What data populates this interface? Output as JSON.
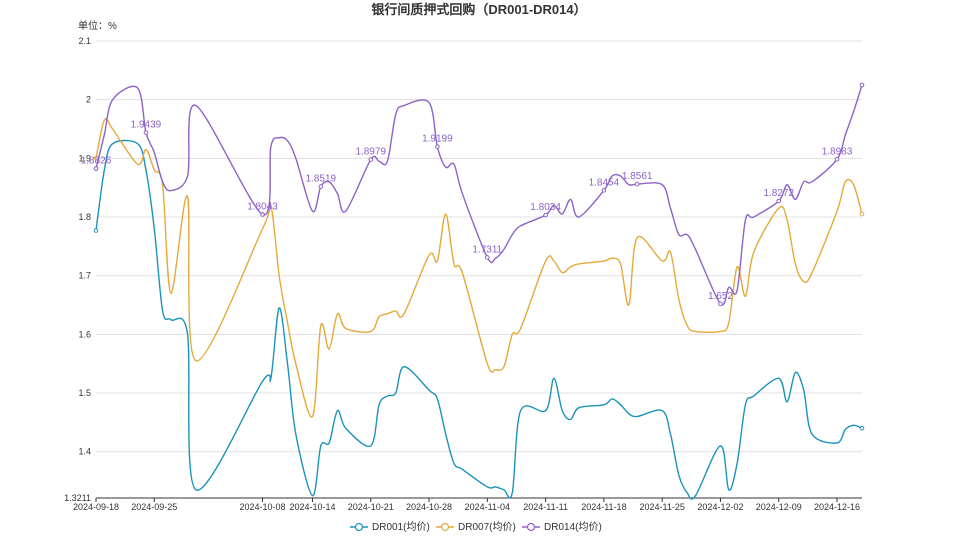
{
  "chart_data": {
    "type": "line",
    "title": "银行间质押式回购（DR001-DR014）",
    "unit_label": "单位：%",
    "ylim": [
      1.3211,
      2.1
    ],
    "y_ticks": [
      "1.3211",
      "1.4",
      "1.5",
      "1.6",
      "1.7",
      "1.8",
      "1.9",
      "2",
      "2.1"
    ],
    "x_range": [
      "2024-09-18",
      "2024-12-19"
    ],
    "x_tick_labels": [
      "2024-09-18",
      "2024-09-25",
      "2024-10-08",
      "2024-10-14",
      "2024-10-21",
      "2024-10-28",
      "2024-11-04",
      "2024-11-11",
      "2024-11-18",
      "2024-11-25",
      "2024-12-02",
      "2024-12-09",
      "2024-12-16"
    ],
    "grid": true,
    "legend_position": "bottom",
    "series": [
      {
        "name": "DR001(均价)",
        "color": "#1a93bb",
        "points": [
          [
            "2024-09-18",
            1.777
          ],
          [
            "2024-09-19",
            1.88
          ],
          [
            "2024-09-20",
            1.925
          ],
          [
            "2024-09-23",
            1.925
          ],
          [
            "2024-09-24",
            1.88
          ],
          [
            "2024-09-25",
            1.78
          ],
          [
            "2024-09-26",
            1.64
          ],
          [
            "2024-09-27",
            1.625
          ],
          [
            "2024-09-29",
            1.6
          ],
          [
            "2024-09-30",
            1.335
          ],
          [
            "2024-10-08",
            1.52
          ],
          [
            "2024-10-09",
            1.525
          ],
          [
            "2024-10-10",
            1.645
          ],
          [
            "2024-10-11",
            1.55
          ],
          [
            "2024-10-12",
            1.43
          ],
          [
            "2024-10-14",
            1.325
          ],
          [
            "2024-10-15",
            1.41
          ],
          [
            "2024-10-16",
            1.415
          ],
          [
            "2024-10-17",
            1.47
          ],
          [
            "2024-10-18",
            1.44
          ],
          [
            "2024-10-21",
            1.41
          ],
          [
            "2024-10-22",
            1.48
          ],
          [
            "2024-10-23",
            1.495
          ],
          [
            "2024-10-24",
            1.5
          ],
          [
            "2024-10-25",
            1.545
          ],
          [
            "2024-10-28",
            1.505
          ],
          [
            "2024-10-29",
            1.49
          ],
          [
            "2024-10-30",
            1.43
          ],
          [
            "2024-10-31",
            1.38
          ],
          [
            "2024-11-01",
            1.37
          ],
          [
            "2024-11-04",
            1.34
          ],
          [
            "2024-11-05",
            1.34
          ],
          [
            "2024-11-06",
            1.335
          ],
          [
            "2024-11-07",
            1.33
          ],
          [
            "2024-11-08",
            1.47
          ],
          [
            "2024-11-11",
            1.47
          ],
          [
            "2024-11-12",
            1.525
          ],
          [
            "2024-11-13",
            1.47
          ],
          [
            "2024-11-14",
            1.455
          ],
          [
            "2024-11-15",
            1.475
          ],
          [
            "2024-11-18",
            1.48
          ],
          [
            "2024-11-19",
            1.49
          ],
          [
            "2024-11-20",
            1.48
          ],
          [
            "2024-11-21",
            1.465
          ],
          [
            "2024-11-22",
            1.46
          ],
          [
            "2024-11-25",
            1.47
          ],
          [
            "2024-11-26",
            1.43
          ],
          [
            "2024-11-27",
            1.36
          ],
          [
            "2024-11-28",
            1.33
          ],
          [
            "2024-11-29",
            1.325
          ],
          [
            "2024-12-02",
            1.41
          ],
          [
            "2024-12-03",
            1.335
          ],
          [
            "2024-12-04",
            1.38
          ],
          [
            "2024-12-05",
            1.48
          ],
          [
            "2024-12-06",
            1.495
          ],
          [
            "2024-12-09",
            1.525
          ],
          [
            "2024-12-10",
            1.485
          ],
          [
            "2024-12-11",
            1.535
          ],
          [
            "2024-12-12",
            1.505
          ],
          [
            "2024-12-13",
            1.43
          ],
          [
            "2024-12-16",
            1.415
          ],
          [
            "2024-12-17",
            1.438
          ],
          [
            "2024-12-18",
            1.445
          ],
          [
            "2024-12-19",
            1.44
          ]
        ],
        "labels": []
      },
      {
        "name": "DR007(均价)",
        "color": "#e5a93a",
        "points": [
          [
            "2024-09-18",
            1.9
          ],
          [
            "2024-09-19",
            1.965
          ],
          [
            "2024-09-20",
            1.95
          ],
          [
            "2024-09-23",
            1.89
          ],
          [
            "2024-09-24",
            1.915
          ],
          [
            "2024-09-25",
            1.88
          ],
          [
            "2024-09-26",
            1.855
          ],
          [
            "2024-09-27",
            1.67
          ],
          [
            "2024-09-29",
            1.835
          ],
          [
            "2024-09-30",
            1.555
          ],
          [
            "2024-10-08",
            1.78
          ],
          [
            "2024-10-09",
            1.82
          ],
          [
            "2024-10-10",
            1.7
          ],
          [
            "2024-10-11",
            1.62
          ],
          [
            "2024-10-12",
            1.55
          ],
          [
            "2024-10-14",
            1.46
          ],
          [
            "2024-10-15",
            1.615
          ],
          [
            "2024-10-16",
            1.575
          ],
          [
            "2024-10-17",
            1.635
          ],
          [
            "2024-10-18",
            1.61
          ],
          [
            "2024-10-21",
            1.605
          ],
          [
            "2024-10-22",
            1.63
          ],
          [
            "2024-10-23",
            1.635
          ],
          [
            "2024-10-24",
            1.64
          ],
          [
            "2024-10-25",
            1.635
          ],
          [
            "2024-10-28",
            1.735
          ],
          [
            "2024-10-29",
            1.725
          ],
          [
            "2024-10-30",
            1.805
          ],
          [
            "2024-10-31",
            1.72
          ],
          [
            "2024-11-01",
            1.705
          ],
          [
            "2024-11-04",
            1.55
          ],
          [
            "2024-11-05",
            1.54
          ],
          [
            "2024-11-06",
            1.545
          ],
          [
            "2024-11-07",
            1.6
          ],
          [
            "2024-11-08",
            1.61
          ],
          [
            "2024-11-11",
            1.725
          ],
          [
            "2024-11-12",
            1.725
          ],
          [
            "2024-11-13",
            1.705
          ],
          [
            "2024-11-14",
            1.715
          ],
          [
            "2024-11-15",
            1.72
          ],
          [
            "2024-11-18",
            1.725
          ],
          [
            "2024-11-19",
            1.73
          ],
          [
            "2024-11-20",
            1.72
          ],
          [
            "2024-11-21",
            1.65
          ],
          [
            "2024-11-22",
            1.765
          ],
          [
            "2024-11-25",
            1.725
          ],
          [
            "2024-11-26",
            1.74
          ],
          [
            "2024-11-27",
            1.66
          ],
          [
            "2024-11-28",
            1.615
          ],
          [
            "2024-11-29",
            1.605
          ],
          [
            "2024-12-02",
            1.605
          ],
          [
            "2024-12-03",
            1.62
          ],
          [
            "2024-12-04",
            1.715
          ],
          [
            "2024-12-05",
            1.665
          ],
          [
            "2024-12-06",
            1.74
          ],
          [
            "2024-12-09",
            1.815
          ],
          [
            "2024-12-10",
            1.795
          ],
          [
            "2024-12-11",
            1.72
          ],
          [
            "2024-12-12",
            1.69
          ],
          [
            "2024-12-13",
            1.705
          ],
          [
            "2024-12-16",
            1.81
          ],
          [
            "2024-12-17",
            1.86
          ],
          [
            "2024-12-18",
            1.855
          ],
          [
            "2024-12-19",
            1.805
          ]
        ],
        "labels": []
      },
      {
        "name": "DR014(均价)",
        "color": "#8d62c8",
        "points": [
          [
            "2024-09-18",
            1.8826
          ],
          [
            "2024-09-19",
            1.94
          ],
          [
            "2024-09-20",
            2.0
          ],
          [
            "2024-09-23",
            2.02
          ],
          [
            "2024-09-24",
            1.9439
          ],
          [
            "2024-09-25",
            1.91
          ],
          [
            "2024-09-26",
            1.86
          ],
          [
            "2024-09-27",
            1.845
          ],
          [
            "2024-09-29",
            1.87
          ],
          [
            "2024-09-30",
            1.99
          ],
          [
            "2024-10-08",
            1.8043
          ],
          [
            "2024-10-09",
            1.92
          ],
          [
            "2024-10-10",
            1.935
          ],
          [
            "2024-10-11",
            1.93
          ],
          [
            "2024-10-12",
            1.9
          ],
          [
            "2024-10-14",
            1.81
          ],
          [
            "2024-10-15",
            1.8519
          ],
          [
            "2024-10-16",
            1.86
          ],
          [
            "2024-10-17",
            1.84
          ],
          [
            "2024-10-18",
            1.81
          ],
          [
            "2024-10-21",
            1.8979
          ],
          [
            "2024-10-22",
            1.895
          ],
          [
            "2024-10-23",
            1.895
          ],
          [
            "2024-10-24",
            1.975
          ],
          [
            "2024-10-25",
            1.99
          ],
          [
            "2024-10-28",
            1.995
          ],
          [
            "2024-10-29",
            1.9199
          ],
          [
            "2024-10-30",
            1.885
          ],
          [
            "2024-10-31",
            1.89
          ],
          [
            "2024-11-01",
            1.84
          ],
          [
            "2024-11-04",
            1.7311
          ],
          [
            "2024-11-05",
            1.73
          ],
          [
            "2024-11-06",
            1.745
          ],
          [
            "2024-11-07",
            1.77
          ],
          [
            "2024-11-08",
            1.785
          ],
          [
            "2024-11-11",
            1.8034
          ],
          [
            "2024-11-12",
            1.82
          ],
          [
            "2024-11-13",
            1.805
          ],
          [
            "2024-11-14",
            1.83
          ],
          [
            "2024-11-15",
            1.8
          ],
          [
            "2024-11-18",
            1.8454
          ],
          [
            "2024-11-19",
            1.87
          ],
          [
            "2024-11-20",
            1.87
          ],
          [
            "2024-11-21",
            1.855
          ],
          [
            "2024-11-22",
            1.8561
          ],
          [
            "2024-11-25",
            1.855
          ],
          [
            "2024-11-26",
            1.815
          ],
          [
            "2024-11-27",
            1.77
          ],
          [
            "2024-11-28",
            1.77
          ],
          [
            "2024-11-29",
            1.745
          ],
          [
            "2024-12-02",
            1.652
          ],
          [
            "2024-12-03",
            1.68
          ],
          [
            "2024-12-04",
            1.675
          ],
          [
            "2024-12-05",
            1.795
          ],
          [
            "2024-12-06",
            1.8
          ],
          [
            "2024-12-09",
            1.8272
          ],
          [
            "2024-12-10",
            1.855
          ],
          [
            "2024-12-11",
            1.83
          ],
          [
            "2024-12-12",
            1.86
          ],
          [
            "2024-12-13",
            1.86
          ],
          [
            "2024-12-16",
            1.8983
          ],
          [
            "2024-12-17",
            1.94
          ],
          [
            "2024-12-18",
            1.98
          ],
          [
            "2024-12-19",
            2.025
          ]
        ],
        "labels": [
          {
            "x": "2024-09-18",
            "y": 1.8826,
            "text": "1.8826"
          },
          {
            "x": "2024-09-24",
            "y": 1.9439,
            "text": "1.9439"
          },
          {
            "x": "2024-10-08",
            "y": 1.8043,
            "text": "1.8043"
          },
          {
            "x": "2024-10-15",
            "y": 1.8519,
            "text": "1.8519"
          },
          {
            "x": "2024-10-21",
            "y": 1.8979,
            "text": "1.8979"
          },
          {
            "x": "2024-10-29",
            "y": 1.9199,
            "text": "1.9199"
          },
          {
            "x": "2024-11-04",
            "y": 1.7311,
            "text": "1.7311"
          },
          {
            "x": "2024-11-11",
            "y": 1.8034,
            "text": "1.8034"
          },
          {
            "x": "2024-11-18",
            "y": 1.8454,
            "text": "1.8454"
          },
          {
            "x": "2024-11-22",
            "y": 1.8561,
            "text": "1.8561"
          },
          {
            "x": "2024-12-02",
            "y": 1.652,
            "text": "1.652"
          },
          {
            "x": "2024-12-09",
            "y": 1.8272,
            "text": "1.8272"
          },
          {
            "x": "2024-12-16",
            "y": 1.8983,
            "text": "1.8983"
          }
        ]
      }
    ]
  }
}
